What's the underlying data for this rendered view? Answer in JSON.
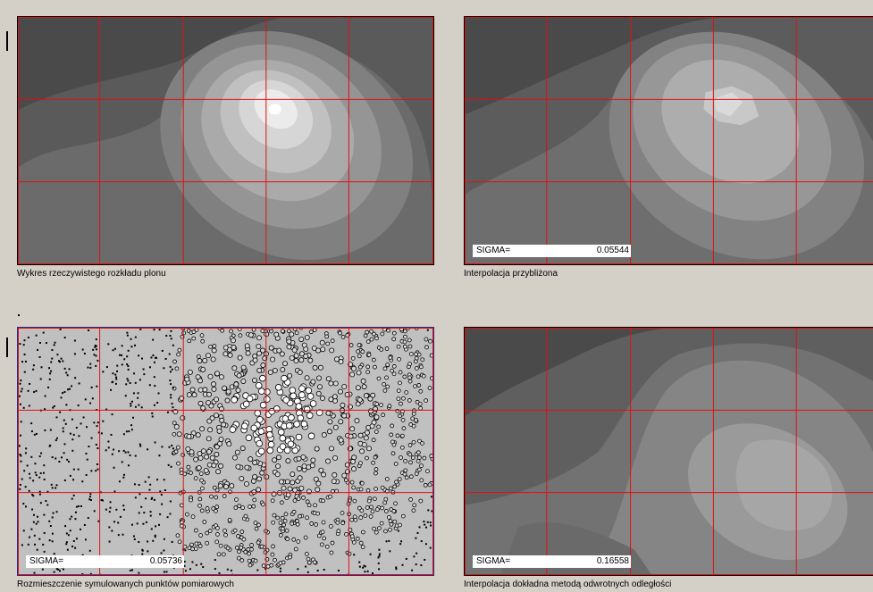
{
  "panels": {
    "actual": {
      "caption": "Wykres rzeczywistego rozkładu plonu"
    },
    "approx": {
      "caption": "Interpolacja przybliżona",
      "sigma_label": "SIGMA=",
      "sigma_value": "0.05544"
    },
    "points": {
      "caption": "Rozmieszczenie symulowanych punktów pomiarowych",
      "sigma_label": "SIGMA=",
      "sigma_value": "0.05736"
    },
    "idw": {
      "caption": "Interpolacja dokładna metodą odwrotnych odległości",
      "sigma_label": "SIGMA=",
      "sigma_value": "0.16558"
    }
  },
  "colors": {
    "background": "#d4d0c8",
    "grid_line": "#e01010",
    "sigma_box": "#ffffff",
    "contour_levels": [
      "#3c3c3c",
      "#555555",
      "#6a6a6a",
      "#7f7f7f",
      "#959595",
      "#aaaaaa",
      "#bfbfbf",
      "#d6d6d6",
      "#ececec",
      "#ffffff"
    ]
  }
}
